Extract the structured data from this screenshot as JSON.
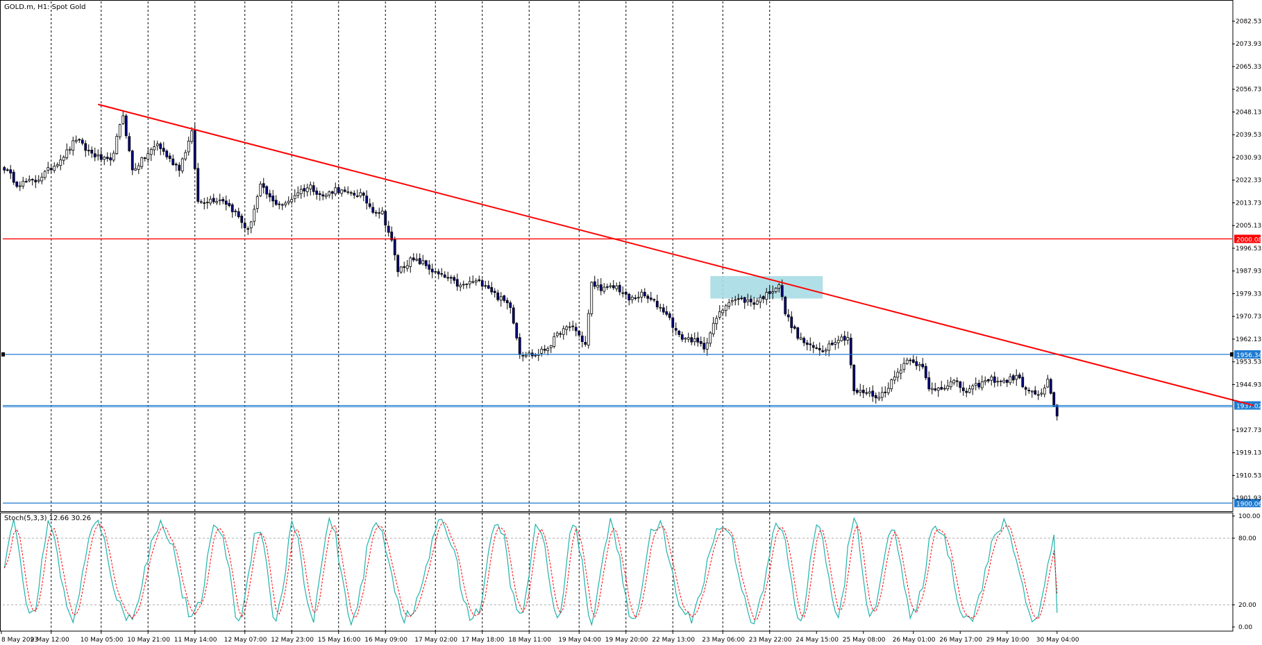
{
  "header": {
    "symbol_label": "GOLD.m, H1:  Spot Gold"
  },
  "indicator": {
    "label": "Stoch(5,3,3) 12.66 30.26"
  },
  "colors": {
    "up": "#000000",
    "down": "#000080",
    "trendline": "#ff0000",
    "support": "#1e7bd0",
    "stoch_main": "#20b2aa",
    "stoch_signal": "#ff0000",
    "zone": "#a8dce4"
  },
  "chart_data": [
    {
      "type": "candlestick",
      "timeframe": "H1",
      "ylim": [
        1897.0,
        2090.0
      ],
      "y_ticks": [
        2082.53,
        2073.93,
        2065.33,
        2056.73,
        2048.13,
        2039.53,
        2030.93,
        2022.33,
        2013.73,
        2005.13,
        1996.53,
        1987.93,
        1979.33,
        1970.73,
        1962.13,
        1953.53,
        1944.93,
        1927.73,
        1919.13,
        1910.53,
        1901.93
      ],
      "x_labels": [
        "8 May 2023",
        "9 May 12:00",
        "10 May 05:00",
        "10 May 21:00",
        "11 May 14:00",
        "12 May 07:00",
        "12 May 23:00",
        "15 May 16:00",
        "16 May 09:00",
        "17 May 02:00",
        "17 May 18:00",
        "18 May 11:00",
        "19 May 04:00",
        "19 May 20:00",
        "22 May 13:00",
        "23 May 06:00",
        "23 May 22:00",
        "24 May 15:00",
        "25 May 08:00",
        "26 May 01:00",
        "26 May 17:00",
        "29 May 10:00",
        "30 May 04:00"
      ],
      "horizontal_lines": [
        {
          "price": 2000.08,
          "label": "2000.08",
          "color": "#ff0000"
        },
        {
          "price": 1956.34,
          "label": "1956.34",
          "color": "#1e7bd0"
        },
        {
          "price": 1937.02,
          "label": "1937.02",
          "color": "#1e7bd0"
        },
        {
          "price": 1900.06,
          "label": "1900.06",
          "color": "#1e7bd0"
        }
      ],
      "trendline": {
        "from": {
          "bar": 30,
          "price": 2051.0
        },
        "to": {
          "bar": 400,
          "price": 1937.0
        }
      },
      "zone": {
        "bar_from": 226,
        "bar_to": 262,
        "price_top": 1986.0,
        "price_bottom": 1977.5
      },
      "anchors": [
        [
          0,
          2027
        ],
        [
          4,
          2021
        ],
        [
          10,
          2022
        ],
        [
          16,
          2028
        ],
        [
          20,
          2033
        ],
        [
          23,
          2038
        ],
        [
          26,
          2034
        ],
        [
          30,
          2031
        ],
        [
          34,
          2029
        ],
        [
          38,
          2047
        ],
        [
          41,
          2026
        ],
        [
          45,
          2031
        ],
        [
          49,
          2036
        ],
        [
          53,
          2030
        ],
        [
          56,
          2027
        ],
        [
          60,
          2040
        ],
        [
          62,
          2014
        ],
        [
          66,
          2015
        ],
        [
          70,
          2015
        ],
        [
          74,
          2010
        ],
        [
          78,
          2003
        ],
        [
          82,
          2020
        ],
        [
          86,
          2014
        ],
        [
          90,
          2013
        ],
        [
          94,
          2018
        ],
        [
          98,
          2020
        ],
        [
          102,
          2016
        ],
        [
          106,
          2019
        ],
        [
          110,
          2017
        ],
        [
          114,
          2017
        ],
        [
          118,
          2011
        ],
        [
          121,
          2010
        ],
        [
          124,
          1999
        ],
        [
          126,
          1988
        ],
        [
          130,
          1992
        ],
        [
          134,
          1991
        ],
        [
          138,
          1987
        ],
        [
          142,
          1985
        ],
        [
          146,
          1982
        ],
        [
          150,
          1984
        ],
        [
          154,
          1983
        ],
        [
          158,
          1978
        ],
        [
          162,
          1975
        ],
        [
          165,
          1957
        ],
        [
          170,
          1956
        ],
        [
          174,
          1959
        ],
        [
          178,
          1965
        ],
        [
          182,
          1967
        ],
        [
          186,
          1960
        ],
        [
          188,
          1983
        ],
        [
          192,
          1981
        ],
        [
          196,
          1982
        ],
        [
          200,
          1977
        ],
        [
          204,
          1979
        ],
        [
          208,
          1976
        ],
        [
          212,
          1972
        ],
        [
          216,
          1963
        ],
        [
          220,
          1962
        ],
        [
          224,
          1959
        ],
        [
          228,
          1970
        ],
        [
          232,
          1977
        ],
        [
          236,
          1977
        ],
        [
          240,
          1976
        ],
        [
          244,
          1979
        ],
        [
          248,
          1983
        ],
        [
          250,
          1972
        ],
        [
          254,
          1963
        ],
        [
          258,
          1959
        ],
        [
          262,
          1958
        ],
        [
          266,
          1962
        ],
        [
          270,
          1963
        ],
        [
          272,
          1942
        ],
        [
          276,
          1942
        ],
        [
          280,
          1940
        ],
        [
          284,
          1946
        ],
        [
          288,
          1953
        ],
        [
          290,
          1955
        ],
        [
          294,
          1951
        ],
        [
          296,
          1943
        ],
        [
          300,
          1944
        ],
        [
          304,
          1946
        ],
        [
          308,
          1942
        ],
        [
          312,
          1945
        ],
        [
          316,
          1947
        ],
        [
          320,
          1946
        ],
        [
          324,
          1948
        ],
        [
          328,
          1942
        ],
        [
          332,
          1941
        ],
        [
          334,
          1946
        ],
        [
          336,
          1936
        ],
        [
          337,
          1933
        ]
      ]
    },
    {
      "type": "line",
      "name": "Stoch(5,3,3)",
      "ylim": [
        0,
        100
      ],
      "levels": [
        20,
        80
      ],
      "y_ticks": [
        100.0,
        80.0,
        20.0,
        0.0
      ],
      "last_values": [
        12.66,
        30.26
      ]
    }
  ]
}
